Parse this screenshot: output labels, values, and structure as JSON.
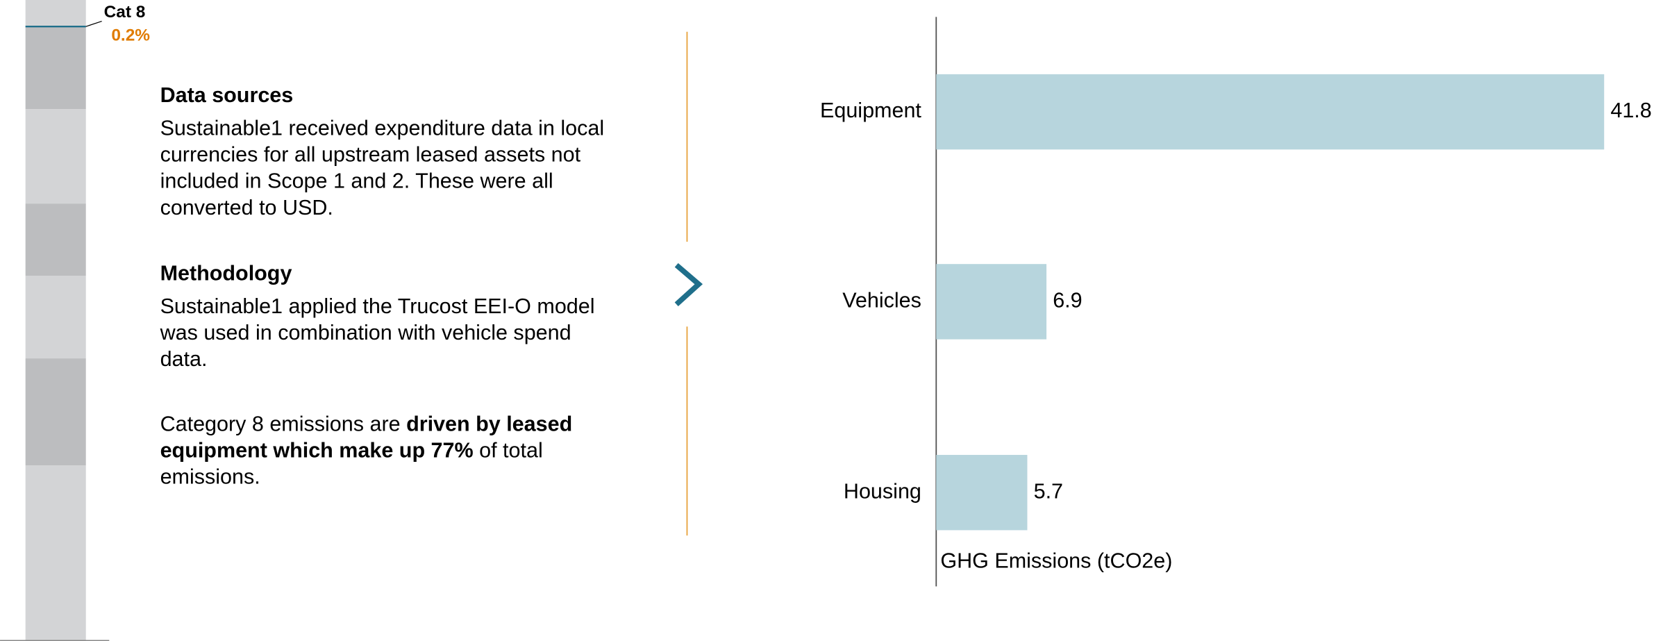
{
  "callout": {
    "label": "Cat 8",
    "value_label": "0.2%"
  },
  "sections": [
    {
      "heading": "Data sources",
      "lines": [
        "Sustainable1 received expenditure data in local",
        "currencies for all upstream leased assets not",
        "included in Scope 1 and 2. These were all",
        "converted to USD."
      ]
    },
    {
      "heading": "Methodology",
      "lines": [
        "Sustainable1 applied the Trucost EEI-O model",
        "was used in combination with vehicle spend",
        "data."
      ]
    }
  ],
  "insight": {
    "lines": [
      [
        {
          "text": "Category 8 emissions are "
        },
        {
          "text": "driven by leased",
          "bold": true
        }
      ],
      [
        {
          "text": "equipment which make up 77%",
          "bold": true
        },
        {
          "text": " of total"
        }
      ],
      [
        {
          "text": "emissions."
        }
      ]
    ]
  },
  "chart_data": {
    "type": "hbar",
    "categories": [
      "Equipment",
      "Vehicles",
      "Housing"
    ],
    "values": [
      41.8,
      6.9,
      5.7
    ],
    "color": "#b7d5dd",
    "xlim": [
      0,
      41.8
    ],
    "x_label": "GHG Emissions (tCO2e)"
  }
}
